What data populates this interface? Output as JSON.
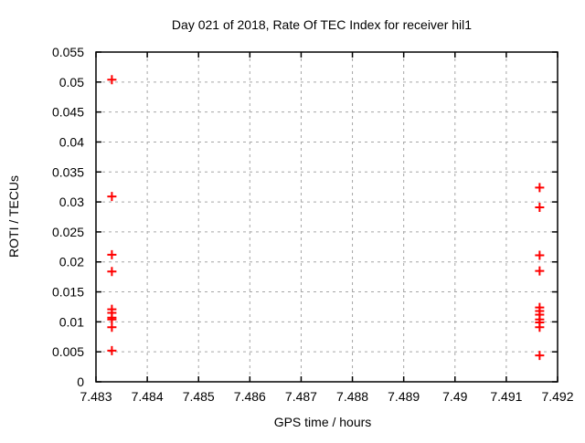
{
  "chart_data": {
    "type": "scatter",
    "title": "Day 021 of 2018, Rate Of TEC Index for receiver hil1",
    "xlabel": "GPS time / hours",
    "ylabel": "ROTI / TECUs",
    "xlim": [
      7.483,
      7.492
    ],
    "ylim": [
      0,
      0.055
    ],
    "grid": true,
    "legend": "none",
    "background_color": "#ffffff",
    "grid_color": "#a6a6a6",
    "border_color": "#000000",
    "xticks": [
      {
        "v": 7.483,
        "label": "7.483"
      },
      {
        "v": 7.484,
        "label": "7.484"
      },
      {
        "v": 7.485,
        "label": "7.485"
      },
      {
        "v": 7.486,
        "label": "7.486"
      },
      {
        "v": 7.487,
        "label": "7.487"
      },
      {
        "v": 7.488,
        "label": "7.488"
      },
      {
        "v": 7.489,
        "label": "7.489"
      },
      {
        "v": 7.49,
        "label": "7.49"
      },
      {
        "v": 7.491,
        "label": "7.491"
      },
      {
        "v": 7.492,
        "label": "7.492"
      }
    ],
    "yticks": [
      {
        "v": 0,
        "label": "0"
      },
      {
        "v": 0.005,
        "label": "0.005"
      },
      {
        "v": 0.01,
        "label": "0.01"
      },
      {
        "v": 0.015,
        "label": "0.015"
      },
      {
        "v": 0.02,
        "label": "0.02"
      },
      {
        "v": 0.025,
        "label": "0.025"
      },
      {
        "v": 0.03,
        "label": "0.03"
      },
      {
        "v": 0.035,
        "label": "0.035"
      },
      {
        "v": 0.04,
        "label": "0.04"
      },
      {
        "v": 0.045,
        "label": "0.045"
      },
      {
        "v": 0.05,
        "label": "0.05"
      },
      {
        "v": 0.055,
        "label": "0.055"
      }
    ],
    "series": [
      {
        "name": "ROTI",
        "marker": "plus",
        "color": "#ff0000",
        "points": [
          [
            7.48331,
            0.0504
          ],
          [
            7.48331,
            0.0309
          ],
          [
            7.48331,
            0.0212
          ],
          [
            7.48331,
            0.0184
          ],
          [
            7.48331,
            0.0121
          ],
          [
            7.48331,
            0.0115
          ],
          [
            7.48331,
            0.0107
          ],
          [
            7.48331,
            0.0104
          ],
          [
            7.48331,
            0.0091
          ],
          [
            7.48331,
            0.0052
          ],
          [
            7.49165,
            0.0324
          ],
          [
            7.49165,
            0.0291
          ],
          [
            7.49165,
            0.0211
          ],
          [
            7.49165,
            0.0185
          ],
          [
            7.49165,
            0.0124
          ],
          [
            7.49165,
            0.0118
          ],
          [
            7.49165,
            0.0112
          ],
          [
            7.49165,
            0.0104
          ],
          [
            7.49165,
            0.0099
          ],
          [
            7.49165,
            0.0091
          ],
          [
            7.49165,
            0.0044
          ]
        ]
      }
    ]
  }
}
